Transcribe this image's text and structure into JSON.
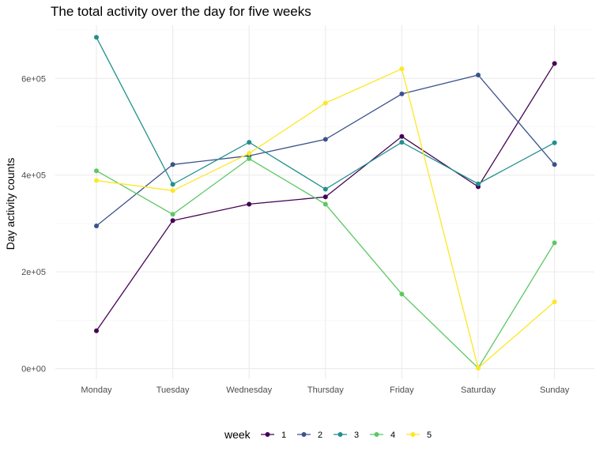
{
  "chart_data": {
    "type": "line",
    "title": "The total activity over the day for five weeks",
    "xlabel": "",
    "ylabel": "Day activity counts",
    "categories": [
      "Monday",
      "Tuesday",
      "Wednesday",
      "Thursday",
      "Friday",
      "Saturday",
      "Sunday"
    ],
    "ylim": [
      -22000,
      710000
    ],
    "yticks": [
      0,
      200000,
      400000,
      600000
    ],
    "ytick_labels": [
      "0e+00",
      "2e+05",
      "4e+05",
      "6e+05"
    ],
    "grid": true,
    "legend": {
      "title": "week",
      "position": "bottom"
    },
    "series": [
      {
        "name": "1",
        "color": "#440154",
        "values": [
          78000,
          306000,
          340000,
          355000,
          480000,
          376000,
          631000
        ]
      },
      {
        "name": "2",
        "color": "#3B528B",
        "values": [
          295000,
          422000,
          440000,
          474000,
          568000,
          607000,
          422000
        ]
      },
      {
        "name": "3",
        "color": "#21908C",
        "values": [
          685000,
          381000,
          468000,
          371000,
          468000,
          382000,
          467000
        ]
      },
      {
        "name": "4",
        "color": "#5DC863",
        "values": [
          409000,
          319000,
          434000,
          340000,
          154000,
          1000,
          260000
        ]
      },
      {
        "name": "5",
        "color": "#FDE725",
        "values": [
          389000,
          368000,
          445000,
          549000,
          620000,
          1000,
          138000
        ]
      }
    ]
  }
}
